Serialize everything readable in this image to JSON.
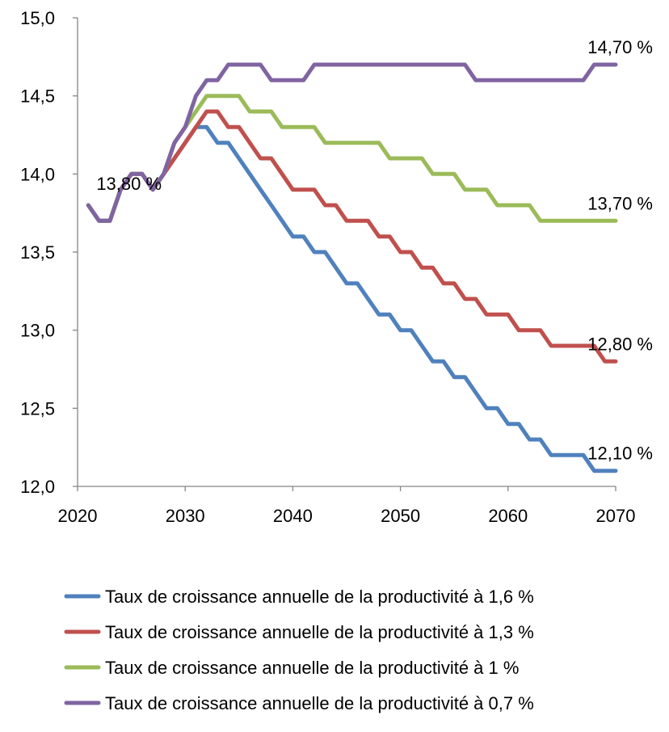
{
  "chart_data": {
    "type": "line",
    "title": "",
    "xlabel": "",
    "ylabel": "",
    "xlim": [
      2020,
      2070
    ],
    "ylim": [
      12.0,
      15.0
    ],
    "x_ticks": [
      2020,
      2030,
      2040,
      2050,
      2060,
      2070
    ],
    "x_tick_labels": [
      "2020",
      "2030",
      "2040",
      "2050",
      "2060",
      "2070"
    ],
    "y_ticks": [
      12.0,
      12.5,
      13.0,
      13.5,
      14.0,
      14.5,
      15.0
    ],
    "y_tick_labels": [
      "12,0",
      "12,5",
      "13,0",
      "13,5",
      "14,0",
      "14,5",
      "15,0"
    ],
    "grid": false,
    "legend_position": "bottom",
    "x": [
      2021,
      2022,
      2023,
      2024,
      2025,
      2026,
      2027,
      2028,
      2029,
      2030,
      2031,
      2032,
      2033,
      2034,
      2035,
      2036,
      2037,
      2038,
      2039,
      2040,
      2041,
      2042,
      2043,
      2044,
      2045,
      2046,
      2047,
      2048,
      2049,
      2050,
      2051,
      2052,
      2053,
      2054,
      2055,
      2056,
      2057,
      2058,
      2059,
      2060,
      2061,
      2062,
      2063,
      2064,
      2065,
      2066,
      2067,
      2068,
      2069,
      2070
    ],
    "series": [
      {
        "name": "Taux de croissance annuelle  de la productivité à 1,6 %",
        "color": "#4F81BD",
        "values": [
          13.8,
          13.7,
          13.7,
          13.9,
          14.0,
          14.0,
          13.9,
          14.0,
          14.1,
          14.2,
          14.3,
          14.3,
          14.2,
          14.2,
          14.1,
          14.0,
          13.9,
          13.8,
          13.7,
          13.6,
          13.6,
          13.5,
          13.5,
          13.4,
          13.3,
          13.3,
          13.2,
          13.1,
          13.1,
          13.0,
          13.0,
          12.9,
          12.8,
          12.8,
          12.7,
          12.7,
          12.6,
          12.5,
          12.5,
          12.4,
          12.4,
          12.3,
          12.3,
          12.2,
          12.2,
          12.2,
          12.2,
          12.1,
          12.1,
          12.1
        ]
      },
      {
        "name": "Taux de croissance annuelle  de la productivité à 1,3 %",
        "color": "#C0504D",
        "values": [
          13.8,
          13.7,
          13.7,
          13.9,
          14.0,
          14.0,
          13.9,
          14.0,
          14.1,
          14.2,
          14.3,
          14.4,
          14.4,
          14.3,
          14.3,
          14.2,
          14.1,
          14.1,
          14.0,
          13.9,
          13.9,
          13.9,
          13.8,
          13.8,
          13.7,
          13.7,
          13.7,
          13.6,
          13.6,
          13.5,
          13.5,
          13.4,
          13.4,
          13.3,
          13.3,
          13.2,
          13.2,
          13.1,
          13.1,
          13.1,
          13.0,
          13.0,
          13.0,
          12.9,
          12.9,
          12.9,
          12.9,
          12.9,
          12.8,
          12.8
        ]
      },
      {
        "name": "Taux de croissance annuelle  de la productivité à 1 %",
        "color": "#9BBB59",
        "values": [
          13.8,
          13.7,
          13.7,
          13.9,
          14.0,
          14.0,
          13.9,
          14.0,
          14.2,
          14.3,
          14.4,
          14.5,
          14.5,
          14.5,
          14.5,
          14.4,
          14.4,
          14.4,
          14.3,
          14.3,
          14.3,
          14.3,
          14.2,
          14.2,
          14.2,
          14.2,
          14.2,
          14.2,
          14.1,
          14.1,
          14.1,
          14.1,
          14.0,
          14.0,
          14.0,
          13.9,
          13.9,
          13.9,
          13.8,
          13.8,
          13.8,
          13.8,
          13.7,
          13.7,
          13.7,
          13.7,
          13.7,
          13.7,
          13.7,
          13.7
        ]
      },
      {
        "name": "Taux de croissance annuelle  de la productivité à 0,7 %",
        "color": "#8064A2",
        "values": [
          13.8,
          13.7,
          13.7,
          13.9,
          14.0,
          14.0,
          13.9,
          14.0,
          14.2,
          14.3,
          14.5,
          14.6,
          14.6,
          14.7,
          14.7,
          14.7,
          14.7,
          14.6,
          14.6,
          14.6,
          14.6,
          14.7,
          14.7,
          14.7,
          14.7,
          14.7,
          14.7,
          14.7,
          14.7,
          14.7,
          14.7,
          14.7,
          14.7,
          14.7,
          14.7,
          14.7,
          14.6,
          14.6,
          14.6,
          14.6,
          14.6,
          14.6,
          14.6,
          14.6,
          14.6,
          14.6,
          14.6,
          14.7,
          14.7,
          14.7
        ]
      }
    ],
    "annotations": [
      {
        "text": "13,80 %",
        "x": 2021,
        "y": 13.8,
        "anchor": "start-above-right"
      },
      {
        "text": "14,70 %",
        "x": 2070,
        "y": 14.7,
        "anchor": "end-above"
      },
      {
        "text": "13,70 %",
        "x": 2070,
        "y": 13.7,
        "anchor": "end-above"
      },
      {
        "text": "12,80 %",
        "x": 2070,
        "y": 12.8,
        "anchor": "end-above"
      },
      {
        "text": "12,10 %",
        "x": 2070,
        "y": 12.1,
        "anchor": "end-above"
      }
    ]
  }
}
